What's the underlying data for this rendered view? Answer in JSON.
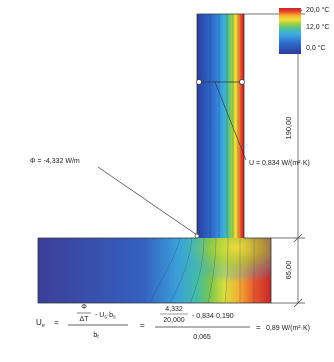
{
  "legend": {
    "max_label": "20,0 °C",
    "mid_label": "12,0 °C",
    "min_label": "0,0 °C",
    "gradient": [
      "#2b3a9a",
      "#2f6fd0",
      "#3fb0e0",
      "#4cc29a",
      "#9acd44",
      "#f0e23a",
      "#f5a12f",
      "#e8412a",
      "#c0242b"
    ]
  },
  "annotations": {
    "u_wall": "U = 0,834 W/(m²·K)",
    "phi": "Φ = -4,332 W/m"
  },
  "dimensions": {
    "upper": "190,00",
    "lower": "65,00"
  },
  "formula": {
    "lhs": "U",
    "lhs_sub": "e",
    "frac1_num": "Φ",
    "frac1_mid": "ΔT",
    "frac1_tail": "- U",
    "frac1_tail_sub": "s",
    "frac1_tail2": "·b",
    "frac1_tail2_sub": "s",
    "frac1_den": "b",
    "frac1_den_sub": "f",
    "eq1": "=",
    "frac2_num_a": "4,332",
    "frac2_num_b": "20,000",
    "frac2_tail": "- 0,834·0,190",
    "frac2_den": "0,065",
    "eq2": "=",
    "result": "0,89 W/(m²·K)"
  }
}
